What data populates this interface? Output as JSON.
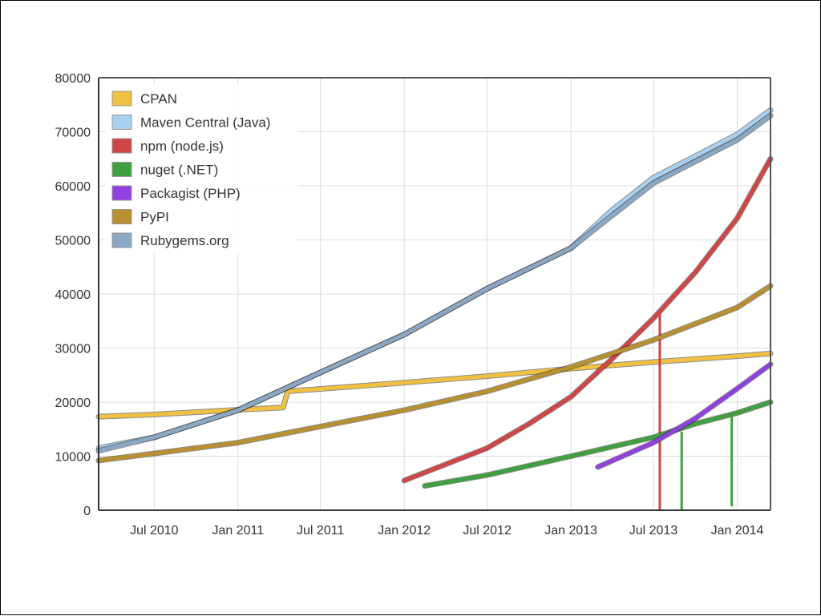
{
  "chart_data": {
    "type": "line",
    "title": "",
    "xlabel": "",
    "ylabel": "",
    "ylim": [
      0,
      80000
    ],
    "yticks": [
      0,
      10000,
      20000,
      30000,
      40000,
      50000,
      60000,
      70000,
      80000
    ],
    "xlim": [
      "2010-03-01",
      "2014-03-15"
    ],
    "xticks": [
      {
        "date": "2010-07-01",
        "label": "Jul 2010"
      },
      {
        "date": "2011-01-01",
        "label": "Jan 2011"
      },
      {
        "date": "2011-07-01",
        "label": "Jul 2011"
      },
      {
        "date": "2012-01-01",
        "label": "Jan 2012"
      },
      {
        "date": "2012-07-01",
        "label": "Jul 2012"
      },
      {
        "date": "2013-01-01",
        "label": "Jan 2013"
      },
      {
        "date": "2013-07-01",
        "label": "Jul 2013"
      },
      {
        "date": "2014-01-01",
        "label": "Jan 2014"
      }
    ],
    "grid": true,
    "legend_position": "top-left",
    "series": [
      {
        "name": "CPAN",
        "color": "#f0c040",
        "points": [
          [
            "2010-03-01",
            17300
          ],
          [
            "2010-07-01",
            17700
          ],
          [
            "2010-12-15",
            18500
          ],
          [
            "2011-04-10",
            19000
          ],
          [
            "2011-04-20",
            22000
          ],
          [
            "2012-01-01",
            23600
          ],
          [
            "2012-07-01",
            24800
          ],
          [
            "2013-01-01",
            26200
          ],
          [
            "2013-07-01",
            27400
          ],
          [
            "2014-01-01",
            28500
          ],
          [
            "2014-03-15",
            29000
          ]
        ]
      },
      {
        "name": "Maven Central (Java)",
        "color": "#a8d0f0",
        "points": [
          [
            "2010-03-01",
            11500
          ],
          [
            "2010-07-01",
            13500
          ],
          [
            "2011-01-01",
            18500
          ],
          [
            "2011-07-01",
            25500
          ],
          [
            "2012-01-01",
            32500
          ],
          [
            "2012-07-01",
            41000
          ],
          [
            "2013-01-01",
            48500
          ],
          [
            "2013-04-01",
            55500
          ],
          [
            "2013-07-01",
            61500
          ],
          [
            "2014-01-01",
            69500
          ],
          [
            "2014-03-15",
            74000
          ]
        ]
      },
      {
        "name": "npm (node.js)",
        "color": "#d04545",
        "points": [
          [
            "2012-01-01",
            5500
          ],
          [
            "2012-07-01",
            11500
          ],
          [
            "2012-10-01",
            16000
          ],
          [
            "2013-01-01",
            21000
          ],
          [
            "2013-04-01",
            28000
          ],
          [
            "2013-07-01",
            35500
          ],
          [
            "2013-10-01",
            44000
          ],
          [
            "2014-01-01",
            54000
          ],
          [
            "2014-03-15",
            65000
          ]
        ],
        "drops": [
          {
            "date": "2013-07-15",
            "from": 36500,
            "to": 0
          }
        ]
      },
      {
        "name": "nuget (.NET)",
        "color": "#40a040",
        "points": [
          [
            "2012-02-15",
            4500
          ],
          [
            "2012-07-01",
            6500
          ],
          [
            "2013-01-01",
            10000
          ],
          [
            "2013-07-01",
            13500
          ],
          [
            "2013-10-01",
            16000
          ],
          [
            "2014-01-01",
            18000
          ],
          [
            "2014-03-15",
            20000
          ]
        ],
        "drops": [
          {
            "date": "2013-09-01",
            "from": 14500,
            "to": 0
          },
          {
            "date": "2013-12-20",
            "from": 17800,
            "to": 700
          }
        ]
      },
      {
        "name": "Packagist (PHP)",
        "color": "#9040e0",
        "points": [
          [
            "2013-03-01",
            8000
          ],
          [
            "2013-07-01",
            12500
          ],
          [
            "2013-10-01",
            17000
          ],
          [
            "2014-01-01",
            22500
          ],
          [
            "2014-03-15",
            27000
          ]
        ]
      },
      {
        "name": "PyPI",
        "color": "#b89030",
        "points": [
          [
            "2010-03-01",
            9200
          ],
          [
            "2010-07-01",
            10500
          ],
          [
            "2011-01-01",
            12500
          ],
          [
            "2011-07-01",
            15500
          ],
          [
            "2012-01-01",
            18500
          ],
          [
            "2012-07-01",
            22000
          ],
          [
            "2013-01-01",
            26500
          ],
          [
            "2013-07-01",
            31500
          ],
          [
            "2014-01-01",
            37500
          ],
          [
            "2014-03-15",
            41500
          ]
        ]
      },
      {
        "name": "Rubygems.org",
        "color": "#8aa8c4",
        "points": [
          [
            "2010-03-01",
            11000
          ],
          [
            "2010-07-01",
            13500
          ],
          [
            "2011-01-01",
            18500
          ],
          [
            "2011-07-01",
            25500
          ],
          [
            "2012-01-01",
            32500
          ],
          [
            "2012-07-01",
            41000
          ],
          [
            "2013-01-01",
            48500
          ],
          [
            "2013-04-01",
            54500
          ],
          [
            "2013-07-01",
            60500
          ],
          [
            "2014-01-01",
            68500
          ],
          [
            "2014-03-15",
            73000
          ]
        ]
      }
    ]
  }
}
